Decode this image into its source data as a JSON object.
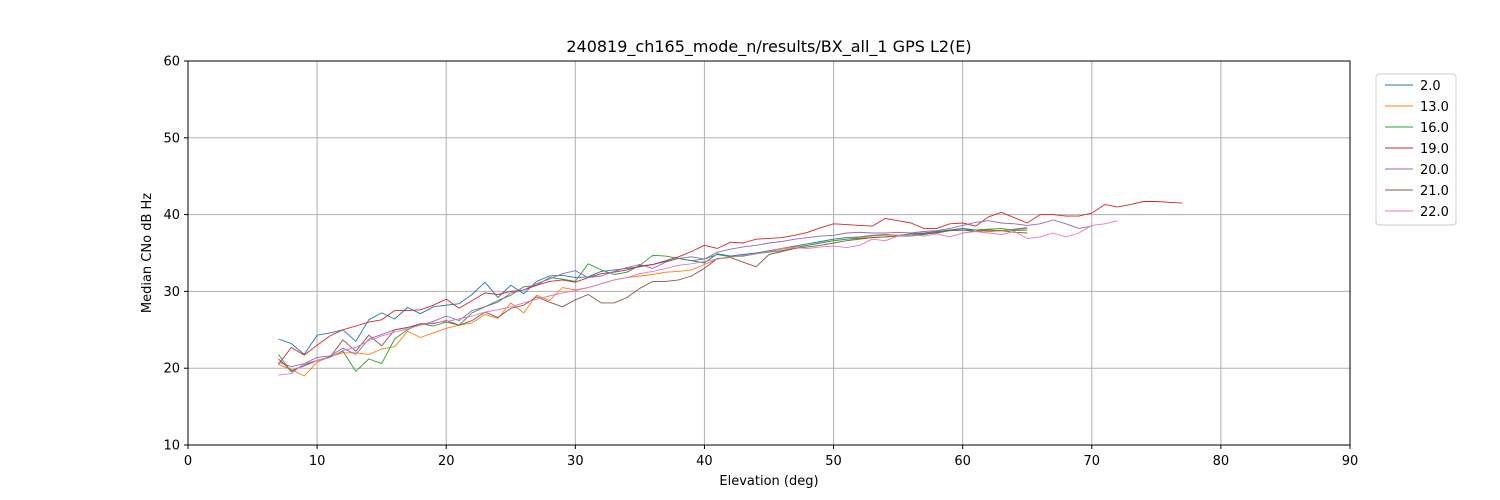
{
  "chart_data": {
    "type": "line",
    "title": "240819_ch165_mode_n/results/BX_all_1 GPS L2(E)",
    "xlabel": "Elevation (deg)",
    "ylabel": "Median CNo dB Hz",
    "xlim": [
      0,
      90
    ],
    "ylim": [
      10,
      60
    ],
    "xticks": [
      0,
      10,
      20,
      30,
      40,
      50,
      60,
      70,
      80,
      90
    ],
    "yticks": [
      10,
      20,
      30,
      40,
      50,
      60
    ],
    "grid": true,
    "legend_position": "outside-top-right",
    "series": [
      {
        "name": "2.0",
        "color": "#1f77b4",
        "x": [
          7,
          8,
          9,
          10,
          11,
          12,
          13,
          14,
          15,
          16,
          17,
          18,
          19,
          20,
          21,
          22,
          23,
          24,
          25,
          26,
          27,
          28,
          29,
          30,
          31,
          32,
          33,
          34,
          35,
          36,
          37,
          38,
          39,
          40,
          41,
          42,
          43,
          44,
          45,
          46,
          47,
          48,
          49,
          50,
          51,
          52,
          53,
          54,
          55,
          56,
          57,
          58,
          59,
          60,
          61,
          62,
          63,
          64,
          65
        ],
        "y": [
          23.8,
          23.2,
          21.8,
          24.3,
          24.6,
          25.0,
          23.5,
          26.3,
          27.2,
          26.4,
          27.9,
          27.1,
          28.0,
          28.2,
          28.4,
          29.6,
          31.2,
          29.2,
          30.8,
          29.7,
          31.3,
          32.0,
          32.1,
          31.8,
          31.9,
          32.6,
          32.8,
          33.0,
          33.2,
          33.5,
          33.9,
          34.3,
          34.0,
          33.7,
          34.9,
          34.6,
          34.8,
          35.0,
          35.3,
          35.6,
          35.9,
          36.2,
          36.5,
          36.8,
          37.0,
          37.1,
          37.3,
          37.4,
          37.3,
          37.5,
          37.6,
          37.8,
          38.0,
          38.2,
          38.0,
          37.8,
          37.9,
          38.1,
          38.3
        ]
      },
      {
        "name": "13.0",
        "color": "#ff7f0e",
        "x": [
          7,
          8,
          9,
          10,
          11,
          12,
          13,
          14,
          15,
          16,
          17,
          18,
          19,
          20,
          21,
          22,
          23,
          24,
          25,
          26,
          27,
          28,
          29,
          30,
          31,
          32,
          33,
          34,
          35,
          36,
          37,
          38,
          39,
          40,
          41,
          42,
          43,
          44,
          45,
          46,
          47,
          48,
          49,
          50,
          51,
          52,
          53,
          54,
          55,
          56,
          57,
          58,
          59,
          60,
          61,
          62,
          63,
          64,
          65
        ],
        "y": [
          20.5,
          19.8,
          19.0,
          20.8,
          21.5,
          22.0,
          22.0,
          21.8,
          22.5,
          22.8,
          24.8,
          24.0,
          24.6,
          25.2,
          25.6,
          25.9,
          27.0,
          26.5,
          28.5,
          27.2,
          29.5,
          28.8,
          30.5,
          30.2,
          30.5,
          31.0,
          31.5,
          31.8,
          32.0,
          32.2,
          32.5,
          32.6,
          32.8,
          33.5,
          34.2,
          34.5,
          34.6,
          34.9,
          35.2,
          35.6,
          35.8,
          36.0,
          36.3,
          36.6,
          36.8,
          37.0,
          37.2,
          37.3,
          37.3,
          37.4,
          37.5,
          37.7,
          37.9,
          38.0,
          38.0,
          37.8,
          37.9,
          38.0,
          38.2
        ]
      },
      {
        "name": "16.0",
        "color": "#2ca02c",
        "x": [
          7,
          8,
          9,
          10,
          11,
          12,
          13,
          14,
          15,
          16,
          17,
          18,
          19,
          20,
          21,
          22,
          23,
          24,
          25,
          26,
          27,
          28,
          29,
          30,
          31,
          32,
          33,
          34,
          35,
          36,
          37,
          38,
          39,
          40,
          41,
          42,
          43,
          44,
          45,
          46,
          47,
          48,
          49,
          50,
          51,
          52,
          53,
          54,
          55,
          56,
          57,
          58,
          59,
          60,
          61,
          62,
          63,
          64,
          65
        ],
        "y": [
          21.8,
          19.5,
          20.5,
          21.0,
          21.5,
          22.2,
          19.6,
          21.2,
          20.6,
          23.8,
          25.0,
          25.8,
          25.5,
          26.0,
          25.6,
          27.2,
          28.0,
          28.8,
          29.5,
          30.6,
          30.8,
          31.8,
          31.6,
          31.3,
          33.6,
          32.8,
          32.2,
          32.5,
          33.4,
          34.7,
          34.6,
          34.3,
          34.0,
          34.2,
          34.8,
          34.5,
          34.6,
          34.9,
          35.1,
          35.3,
          35.6,
          36.0,
          36.3,
          36.6,
          36.8,
          36.9,
          37.0,
          37.1,
          37.2,
          37.2,
          37.4,
          37.7,
          38.0,
          38.0,
          38.0,
          38.1,
          38.2,
          37.9,
          38.0
        ]
      },
      {
        "name": "19.0",
        "color": "#d62728",
        "x": [
          7,
          8,
          9,
          10,
          11,
          12,
          13,
          14,
          15,
          16,
          17,
          18,
          19,
          20,
          21,
          22,
          23,
          24,
          25,
          26,
          27,
          28,
          29,
          30,
          31,
          32,
          33,
          34,
          35,
          36,
          37,
          38,
          39,
          40,
          41,
          42,
          43,
          44,
          45,
          46,
          47,
          48,
          49,
          50,
          51,
          52,
          53,
          54,
          55,
          56,
          57,
          58,
          59,
          60,
          61,
          62,
          63,
          64,
          65,
          66,
          67,
          68,
          69,
          70,
          71,
          72,
          73,
          74,
          75,
          76,
          77
        ],
        "y": [
          20.5,
          22.7,
          21.7,
          23.0,
          24.2,
          25.0,
          25.5,
          26.0,
          26.3,
          27.5,
          27.5,
          27.6,
          28.2,
          29.0,
          27.8,
          28.8,
          29.8,
          29.6,
          30.0,
          30.2,
          30.8,
          31.3,
          31.5,
          31.2,
          31.8,
          32.3,
          32.5,
          32.8,
          33.3,
          33.5,
          34.0,
          34.5,
          35.2,
          36.0,
          35.6,
          36.4,
          36.3,
          36.8,
          36.9,
          37.0,
          37.3,
          37.7,
          38.3,
          38.8,
          38.7,
          38.6,
          38.5,
          39.5,
          39.2,
          38.9,
          38.2,
          38.2,
          38.8,
          38.9,
          38.5,
          39.7,
          40.3,
          39.6,
          38.9,
          40.0,
          40.0,
          39.8,
          39.8,
          40.2,
          41.3,
          41.0,
          41.3,
          41.7,
          41.7,
          41.6,
          41.5
        ]
      },
      {
        "name": "20.0",
        "color": "#9467bd",
        "x": [
          7,
          8,
          9,
          10,
          11,
          12,
          13,
          14,
          15,
          16,
          17,
          18,
          19,
          20,
          21,
          22,
          23,
          24,
          25,
          26,
          27,
          28,
          29,
          30,
          31,
          32,
          33,
          34,
          35,
          36,
          37,
          38,
          39,
          40,
          41,
          42,
          43,
          44,
          45,
          46,
          47,
          48,
          49,
          50,
          51,
          52,
          53,
          54,
          55,
          56,
          57,
          58,
          59,
          60,
          61,
          62,
          63,
          64,
          65,
          66,
          67,
          68,
          69,
          70
        ],
        "y": [
          20.8,
          20.2,
          20.6,
          21.4,
          21.6,
          22.6,
          21.8,
          23.8,
          24.4,
          25.0,
          25.3,
          25.6,
          26.1,
          26.8,
          26.2,
          27.5,
          28.0,
          28.6,
          29.8,
          30.2,
          31.0,
          31.6,
          32.3,
          32.7,
          31.8,
          32.0,
          32.6,
          33.1,
          33.5,
          33.0,
          33.8,
          34.3,
          34.5,
          34.2,
          35.1,
          35.5,
          35.8,
          36.0,
          36.3,
          36.5,
          36.8,
          37.0,
          37.2,
          37.3,
          37.6,
          37.7,
          37.6,
          37.6,
          37.7,
          37.6,
          37.8,
          37.9,
          38.2,
          38.6,
          39.0,
          39.2,
          38.9,
          38.8,
          38.6,
          38.8,
          39.3,
          38.8,
          38.2,
          38.5
        ]
      },
      {
        "name": "21.0",
        "color": "#8c564b",
        "x": [
          7,
          8,
          9,
          10,
          11,
          12,
          13,
          14,
          15,
          16,
          17,
          18,
          19,
          20,
          21,
          22,
          23,
          24,
          25,
          26,
          27,
          28,
          29,
          30,
          31,
          32,
          33,
          34,
          35,
          36,
          37,
          38,
          39,
          40,
          41,
          42,
          43,
          44,
          45,
          46,
          47,
          48,
          49,
          50,
          51,
          52,
          53,
          54,
          55,
          56,
          57,
          58,
          59,
          60,
          61,
          62,
          63,
          64,
          65
        ],
        "y": [
          21.2,
          19.7,
          20.3,
          21.0,
          21.4,
          23.7,
          22.2,
          24.3,
          22.9,
          25.0,
          25.3,
          25.8,
          25.8,
          26.2,
          25.6,
          26.2,
          27.3,
          26.6,
          27.8,
          28.2,
          29.3,
          28.6,
          28.0,
          28.9,
          29.6,
          28.5,
          28.5,
          29.2,
          30.4,
          31.3,
          31.3,
          31.5,
          32.0,
          33.0,
          34.3,
          34.4,
          33.8,
          33.2,
          34.8,
          35.2,
          35.6,
          35.8,
          36.0,
          36.3,
          36.6,
          36.8,
          37.0,
          37.1,
          37.2,
          37.4,
          37.5,
          37.6,
          37.9,
          38.0,
          37.8,
          38.0,
          37.9,
          37.7,
          37.6
        ]
      },
      {
        "name": "22.0",
        "color": "#e377c2",
        "x": [
          7,
          8,
          9,
          10,
          11,
          12,
          13,
          14,
          15,
          16,
          17,
          18,
          19,
          20,
          21,
          22,
          23,
          24,
          25,
          26,
          27,
          28,
          29,
          30,
          31,
          32,
          33,
          34,
          35,
          36,
          37,
          38,
          39,
          40,
          41,
          42,
          43,
          44,
          45,
          46,
          47,
          48,
          49,
          50,
          51,
          52,
          53,
          54,
          55,
          56,
          57,
          58,
          59,
          60,
          61,
          62,
          63,
          64,
          65,
          66,
          67,
          68,
          69,
          70,
          71,
          72
        ],
        "y": [
          19.1,
          19.3,
          20.6,
          21.0,
          21.4,
          22.3,
          22.7,
          23.6,
          24.2,
          24.7,
          25.1,
          25.6,
          25.9,
          26.1,
          26.4,
          26.8,
          27.3,
          27.6,
          28.0,
          28.5,
          29.0,
          29.4,
          29.8,
          30.1,
          30.5,
          31.0,
          31.5,
          31.8,
          32.3,
          32.6,
          33.0,
          33.4,
          33.6,
          33.9,
          34.2,
          34.4,
          34.7,
          34.9,
          35.2,
          35.5,
          35.7,
          35.6,
          35.8,
          35.9,
          35.7,
          36.0,
          36.8,
          36.6,
          37.2,
          37.4,
          37.2,
          37.5,
          37.1,
          37.6,
          37.8,
          37.6,
          37.4,
          37.8,
          36.9,
          37.1,
          37.6,
          37.1,
          37.6,
          38.6,
          38.8,
          39.2
        ]
      }
    ]
  }
}
